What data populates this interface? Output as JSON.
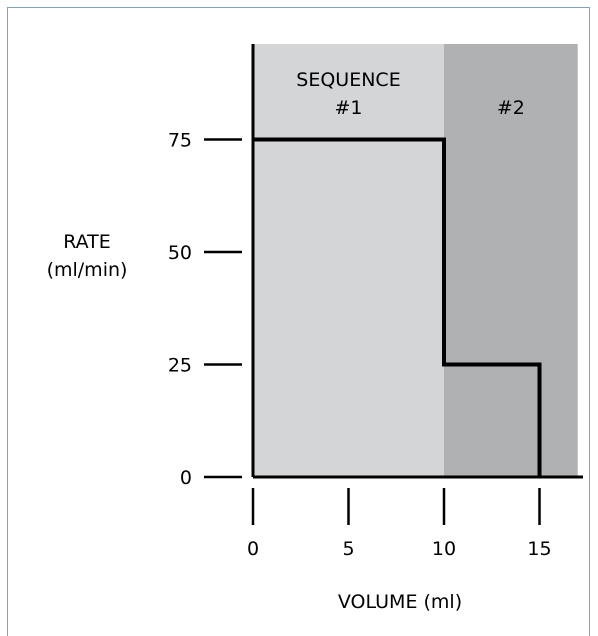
{
  "chart_data": {
    "type": "step",
    "xlabel": "VOLUME (ml)",
    "ylabel_line1": "RATE",
    "ylabel_line2": "(ml/min)",
    "xlim": [
      0,
      17
    ],
    "ylim": [
      0,
      90
    ],
    "x_ticks": [
      0,
      5,
      10,
      15
    ],
    "y_ticks": [
      0,
      25,
      50,
      75
    ],
    "regions": [
      {
        "label_line1": "SEQUENCE",
        "label_line2": "#1",
        "x_start": 0,
        "x_end": 10,
        "color": "#d4d5d7"
      },
      {
        "label_line1": "",
        "label_line2": "#2",
        "x_start": 10,
        "x_end": 17,
        "color": "#afb1b3"
      }
    ],
    "series": [
      {
        "steps": [
          {
            "x_start": 0,
            "x_end": 10,
            "y": 75
          },
          {
            "x_start": 10,
            "x_end": 15,
            "y": 25
          }
        ]
      }
    ],
    "grid": false,
    "legend": "none"
  }
}
